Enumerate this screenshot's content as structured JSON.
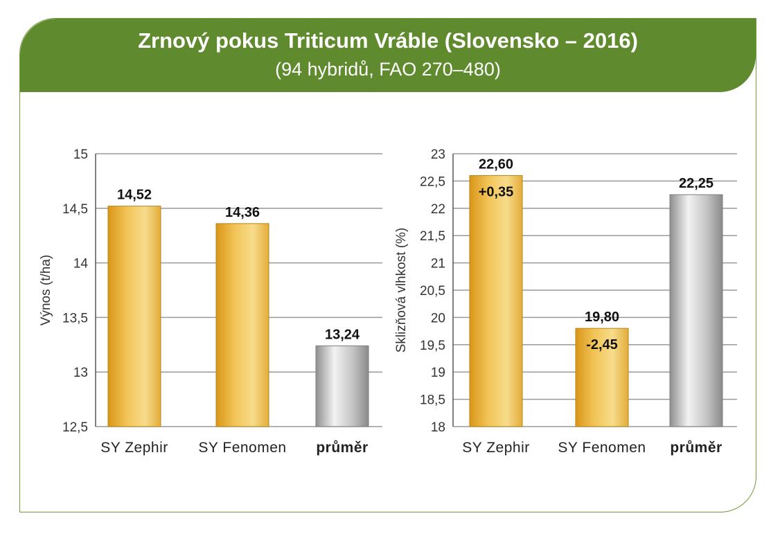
{
  "header": {
    "title": "Zrnový pokus Triticum Vráble (Slovensko – 2016)",
    "subtitle": "(94 hybridů, FAO 270–480)"
  },
  "colors": {
    "header_green": "#5f8a2e",
    "gold": "#e3a82a",
    "gray": "#9a9a9a"
  },
  "chart_data": [
    {
      "type": "bar",
      "ylabel": "Výnos (t/ha)",
      "xlabel": "",
      "ylim": [
        12.5,
        15
      ],
      "yticks": [
        "12,5",
        "13",
        "13,5",
        "14",
        "14,5",
        "15"
      ],
      "ytick_values": [
        12.5,
        13,
        13.5,
        14,
        14.5,
        15
      ],
      "categories": [
        "SY Zephir",
        "SY Fenomen",
        "průměr"
      ],
      "values": [
        14.52,
        14.36,
        13.24
      ],
      "value_labels": [
        "14,52",
        "14,36",
        "13,24"
      ],
      "diff_labels": [
        "",
        "",
        ""
      ],
      "bar_colors": [
        "gold",
        "gold",
        "gray"
      ],
      "grid": true
    },
    {
      "type": "bar",
      "ylabel": "Sklizňová vlhkost (%)",
      "xlabel": "",
      "ylim": [
        18,
        23
      ],
      "yticks": [
        "18",
        "18,5",
        "19",
        "19,5",
        "20",
        "20,5",
        "21",
        "21,5",
        "22",
        "22,5",
        "23"
      ],
      "ytick_values": [
        18,
        18.5,
        19,
        19.5,
        20,
        20.5,
        21,
        21.5,
        22,
        22.5,
        23
      ],
      "categories": [
        "SY Zephir",
        "SY Fenomen",
        "průměr"
      ],
      "values": [
        22.6,
        19.8,
        22.25
      ],
      "value_labels": [
        "22,60",
        "19,80",
        "22,25"
      ],
      "diff_labels": [
        "+0,35",
        "-2,45",
        ""
      ],
      "bar_colors": [
        "gold",
        "gold",
        "gray"
      ],
      "grid": true
    }
  ]
}
